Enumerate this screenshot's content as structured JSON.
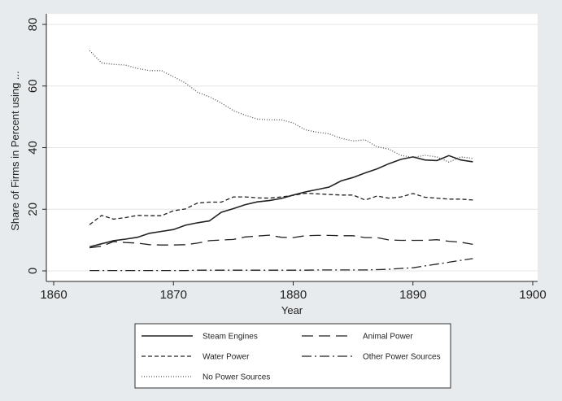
{
  "chart_data": {
    "type": "line",
    "title": "",
    "xlabel": "Year",
    "ylabel": "Share of Firms in Percent using ...",
    "xlim": [
      1860,
      1900
    ],
    "ylim": [
      0,
      80
    ],
    "xticks": [
      "1860",
      "1870",
      "1880",
      "1890",
      "1900"
    ],
    "yticks": [
      "0",
      "20",
      "40",
      "60",
      "80"
    ],
    "grid": "horizontal",
    "legend_position": "bottom",
    "x": [
      1863,
      1864,
      1865,
      1866,
      1867,
      1868,
      1869,
      1870,
      1871,
      1872,
      1873,
      1874,
      1875,
      1876,
      1877,
      1878,
      1879,
      1880,
      1881,
      1882,
      1883,
      1884,
      1885,
      1886,
      1887,
      1888,
      1889,
      1890,
      1891,
      1892,
      1893,
      1894,
      1895
    ],
    "series": [
      {
        "name": "Steam Engines",
        "dash": "",
        "values": [
          7.8,
          8.8,
          9.8,
          10.3,
          10.9,
          12.2,
          12.8,
          13.4,
          14.8,
          15.6,
          16.2,
          19.0,
          20.2,
          21.5,
          22.4,
          22.8,
          23.5,
          24.6,
          25.6,
          26.4,
          27.2,
          29.2,
          30.3,
          31.8,
          33.1,
          34.8,
          36.2,
          37.0,
          36.0,
          35.8,
          37.4,
          36.0,
          35.4
        ]
      },
      {
        "name": "Animal Power",
        "dash": "14,7",
        "values": [
          7.5,
          8.0,
          9.5,
          9.2,
          9.0,
          8.5,
          8.4,
          8.4,
          8.5,
          9.0,
          9.8,
          10.0,
          10.2,
          11.0,
          11.3,
          11.6,
          10.9,
          10.8,
          11.4,
          11.5,
          11.5,
          11.4,
          11.4,
          10.8,
          10.8,
          10.0,
          9.9,
          9.9,
          9.9,
          10.1,
          9.6,
          9.3,
          8.6
        ]
      },
      {
        "name": "Water Power",
        "dash": "5,3",
        "values": [
          15.0,
          18.0,
          16.8,
          17.3,
          18.0,
          17.9,
          17.9,
          19.5,
          20.1,
          22.0,
          22.3,
          22.3,
          24.0,
          24.0,
          23.7,
          23.6,
          24.0,
          24.5,
          25.2,
          25.0,
          24.8,
          24.6,
          24.6,
          23.0,
          24.3,
          23.6,
          24.0,
          25.1,
          23.9,
          23.6,
          23.3,
          23.3,
          23.0
        ]
      },
      {
        "name": "Other Power Sources",
        "dash": "12,4,2,4",
        "values": [
          0.1,
          0.1,
          0.1,
          0.1,
          0.1,
          0.1,
          0.1,
          0.1,
          0.1,
          0.2,
          0.2,
          0.2,
          0.2,
          0.2,
          0.2,
          0.2,
          0.2,
          0.2,
          0.2,
          0.3,
          0.3,
          0.3,
          0.3,
          0.3,
          0.4,
          0.5,
          0.8,
          1.0,
          1.6,
          2.2,
          2.8,
          3.4,
          4.0
        ]
      },
      {
        "name": "No Power Sources",
        "dash": "1,2",
        "values": [
          71.5,
          67.5,
          67.0,
          66.8,
          65.7,
          65.0,
          65.0,
          63.0,
          61.0,
          58.0,
          56.5,
          54.5,
          52.0,
          50.5,
          49.3,
          49.0,
          49.0,
          48.0,
          45.8,
          45.0,
          44.5,
          43.0,
          42.2,
          42.5,
          40.3,
          39.5,
          37.5,
          36.8,
          37.5,
          37.0,
          35.3,
          37.0,
          36.5
        ]
      }
    ]
  }
}
